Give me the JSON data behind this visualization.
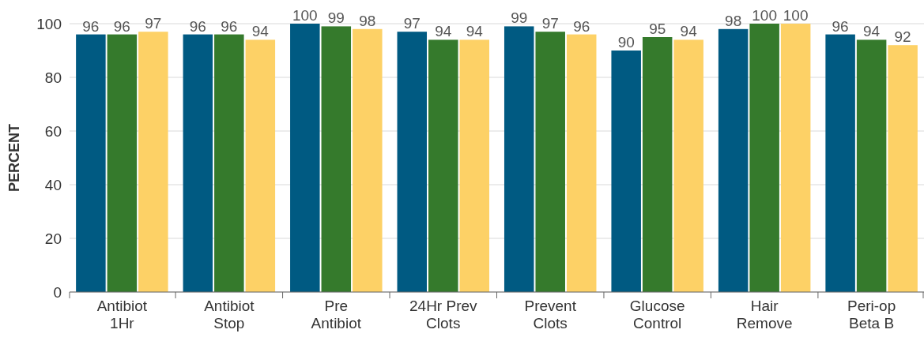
{
  "chart_data": {
    "type": "bar",
    "ylabel": "PERCENT",
    "categories": [
      "Antibiot\n1Hr",
      "Antibiot\nStop",
      "Pre\nAntibiot",
      "24Hr Prev\nClots",
      "Prevent\nClots",
      "Glucose\nControl",
      "Hair\nRemove",
      "Peri-op\nBeta B"
    ],
    "series": [
      {
        "color": "#005a82",
        "values": [
          96,
          96,
          100,
          97,
          99,
          90,
          98,
          96
        ]
      },
      {
        "color": "#357a2c",
        "values": [
          96,
          96,
          99,
          94,
          97,
          95,
          100,
          94
        ]
      },
      {
        "color": "#fdd166",
        "values": [
          97,
          94,
          98,
          94,
          96,
          94,
          100,
          92
        ]
      }
    ],
    "ylim": [
      0,
      100
    ],
    "yticks": [
      0,
      20,
      40,
      60,
      80,
      100
    ],
    "grid": "y",
    "data_labels": true
  }
}
